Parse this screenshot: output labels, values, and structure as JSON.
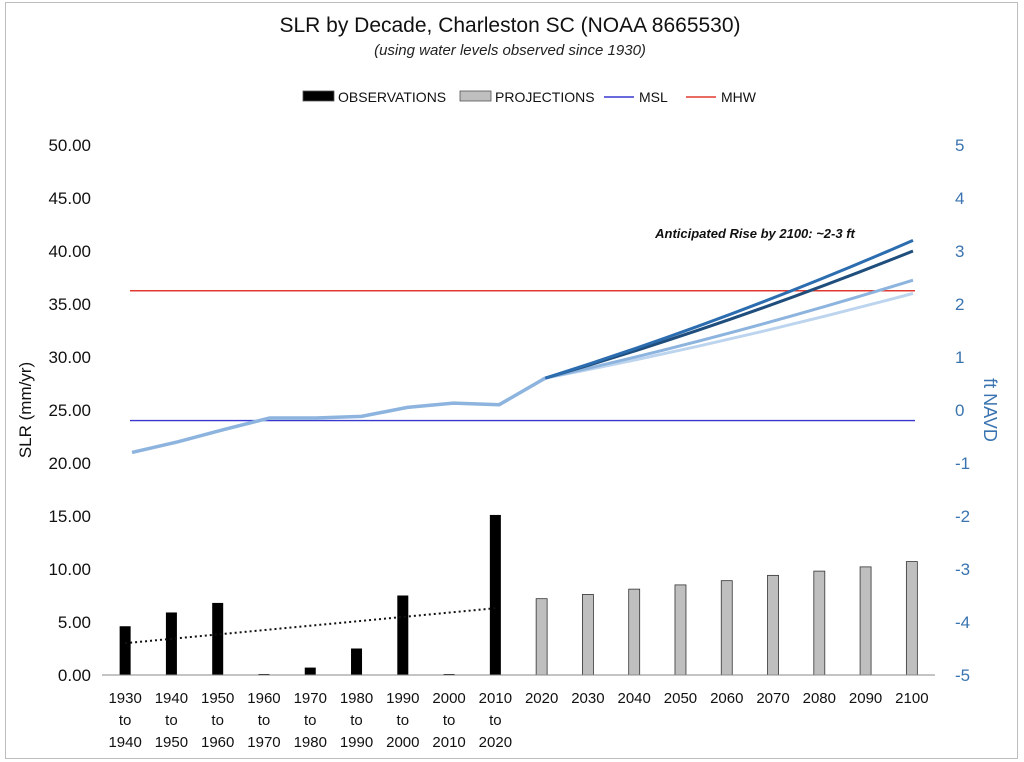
{
  "chart_data": {
    "type": "bar",
    "title": "SLR by Decade, Charleston SC (NOAA 8665530)",
    "subtitle": "(using water levels observed since 1930)",
    "ylabel": "SLR (mm/yr)",
    "y2label": "ft NAVD",
    "ylim": [
      0,
      50
    ],
    "y2lim": [
      -5,
      5
    ],
    "yticks": [
      "0.00",
      "5.00",
      "10.00",
      "15.00",
      "20.00",
      "25.00",
      "30.00",
      "35.00",
      "40.00",
      "45.00",
      "50.00"
    ],
    "y2ticks": [
      "-5",
      "-4",
      "-3",
      "-2",
      "-1",
      "0",
      "1",
      "2",
      "3",
      "4",
      "5"
    ],
    "x_tick_labels": [
      [
        "1930",
        "to",
        "1940"
      ],
      [
        "1940",
        "to",
        "1950"
      ],
      [
        "1950",
        "to",
        "1960"
      ],
      [
        "1960",
        "to",
        "1970"
      ],
      [
        "1970",
        "to",
        "1980"
      ],
      [
        "1980",
        "to",
        "1990"
      ],
      [
        "1990",
        "to",
        "2000"
      ],
      [
        "2000",
        "to",
        "2010"
      ],
      [
        "2010",
        "to",
        "2020"
      ],
      [
        "2020"
      ],
      [
        "2030"
      ],
      [
        "2040"
      ],
      [
        "2050"
      ],
      [
        "2060"
      ],
      [
        "2070"
      ],
      [
        "2080"
      ],
      [
        "2090"
      ],
      [
        "2100"
      ]
    ],
    "legend": {
      "placement": "top",
      "entries": [
        {
          "label": "OBSERVATIONS",
          "color": "#000000",
          "kind": "bar"
        },
        {
          "label": "PROJECTIONS",
          "color": "#bfbfbf",
          "kind": "bar"
        },
        {
          "label": "MSL",
          "color": "#3838d0",
          "kind": "line"
        },
        {
          "label": "MHW",
          "color": "#e03a30",
          "kind": "line"
        }
      ]
    },
    "observations": {
      "color": "#000000",
      "values": [
        4.6,
        5.9,
        6.8,
        0.05,
        0.7,
        2.5,
        7.5,
        0.05,
        15.1
      ]
    },
    "projections": {
      "color": "#bfbfbf",
      "values": [
        7.2,
        7.6,
        8.1,
        8.5,
        8.9,
        9.4,
        9.8,
        10.2,
        10.7
      ]
    },
    "trend": {
      "type": "dotted",
      "color": "#111111",
      "y_start": 3.0,
      "y_end": 6.3
    },
    "msl_level_ft": -0.2,
    "mhw_level_ft": 2.25,
    "water_level_observed_ft": [
      -0.8,
      -0.6,
      -0.37,
      -0.15,
      -0.15,
      -0.12,
      0.05,
      0.13,
      0.1,
      0.6
    ],
    "water_level_projections_ft": [
      {
        "color": "#2c6db0",
        "end": 3.2
      },
      {
        "color": "#1f4e7d",
        "end": 3.0
      },
      {
        "color": "#8db4de",
        "end": 2.45
      },
      {
        "color": "#bcd4ee",
        "end": 2.2
      }
    ],
    "annotation": "Anticipated Rise by 2100: ~2-3 ft",
    "grid": false
  }
}
